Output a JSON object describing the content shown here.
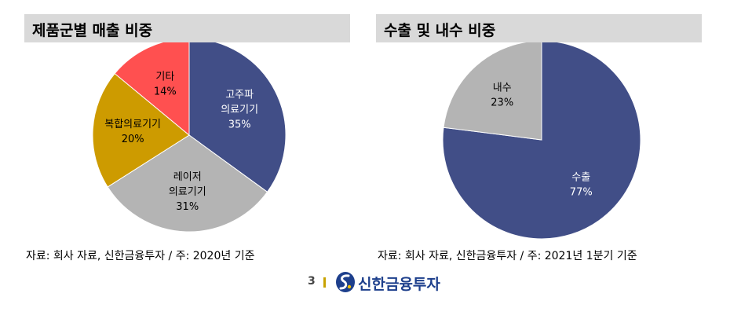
{
  "chart_data": [
    {
      "type": "pie",
      "title": "제품군별 매출 비중",
      "source": "자료: 회사 자료, 신한금융투자 / 주: 2020년 기준",
      "slices": [
        {
          "label": "고주파\n의료기기",
          "value": 35,
          "value_label": "35%",
          "color": "#414e87",
          "text_color": "#ffffff"
        },
        {
          "label": "레이저\n의료기기",
          "value": 31,
          "value_label": "31%",
          "color": "#b4b4b4",
          "text_color": "#000000"
        },
        {
          "label": "복합의료기기",
          "value": 20,
          "value_label": "20%",
          "color": "#cd9b00",
          "text_color": "#000000"
        },
        {
          "label": "기타",
          "value": 14,
          "value_label": "14%",
          "color": "#ff5050",
          "text_color": "#000000"
        }
      ]
    },
    {
      "type": "pie",
      "title": "수출 및 내수 비중",
      "source": "자료: 회사 자료, 신한금융투자 / 주: 2021년 1분기 기준",
      "slices": [
        {
          "label": "수출",
          "value": 77,
          "value_label": "77%",
          "color": "#414e87",
          "text_color": "#ffffff"
        },
        {
          "label": "내수",
          "value": 23,
          "value_label": "23%",
          "color": "#b4b4b4",
          "text_color": "#000000"
        }
      ]
    }
  ],
  "footer": {
    "page_number": "3",
    "brand": "신한금융투자",
    "logo_icon": "shinhan-logo-icon"
  }
}
